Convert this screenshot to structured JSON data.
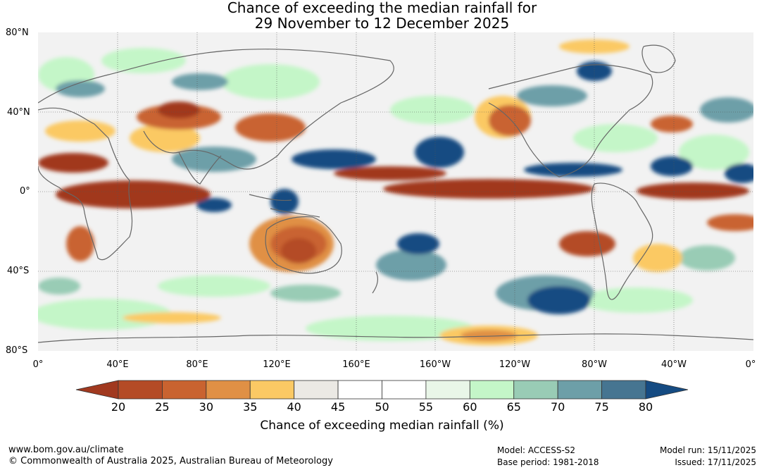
{
  "title": {
    "line1": "Chance of exceeding the median rainfall for",
    "line2": "29 November to 12 December 2025"
  },
  "map": {
    "lat_labels": [
      "80°N",
      "40°N",
      "0°",
      "40°S",
      "80°S"
    ],
    "lon_labels": [
      "0°",
      "40°E",
      "80°E",
      "120°E",
      "160°E",
      "160°W",
      "120°W",
      "80°W",
      "40°W",
      "0°"
    ]
  },
  "legend": {
    "ticks": [
      "20",
      "25",
      "30",
      "35",
      "40",
      "45",
      "50",
      "55",
      "60",
      "65",
      "70",
      "75",
      "80"
    ],
    "colors": [
      "#a1391f",
      "#b44b26",
      "#c96330",
      "#e09045",
      "#fbc964",
      "#ebe9e4",
      "#ffffff",
      "#ffffff",
      "#e9f6e8",
      "#c4f6c8",
      "#99ccb5",
      "#6d9fa8",
      "#467591",
      "#154b82"
    ],
    "title": "Chance of exceeding median rainfall (%)"
  },
  "footer": {
    "url": "www.bom.gov.au/climate",
    "copyright": "© Commonwealth of Australia 2025, Australian Bureau of Meteorology",
    "model": "Model: ACCESS-S2",
    "base_period": "Base period: 1981-2018",
    "model_run": "Model run: 15/11/2025",
    "issued": "Issued: 17/11/2025"
  }
}
